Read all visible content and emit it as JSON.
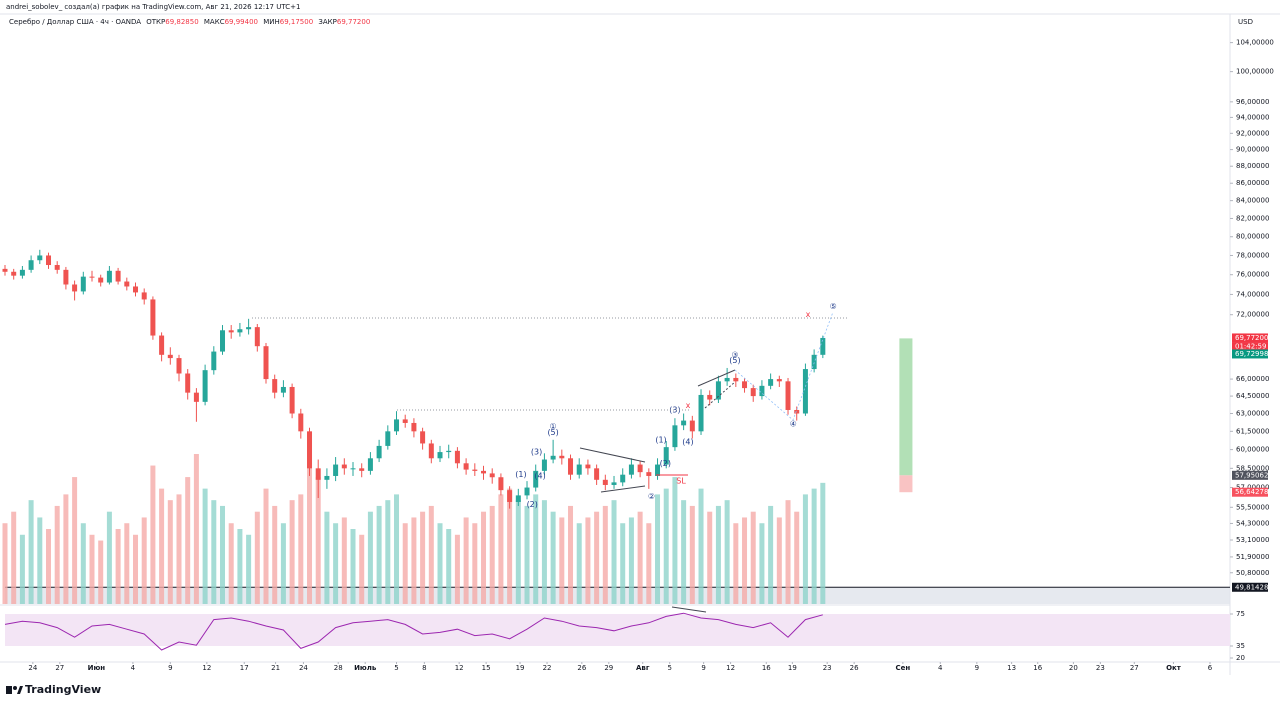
{
  "header": {
    "attribution": "andrei_sobolev_ создал(а) график на TradingView.com, Авг 21, 2026 12:17 UTC+1",
    "legend": {
      "symbol": "Серебро / Доллар США · 4ч · OANDA",
      "open_label": "ОТКР",
      "open": {
        "value": 69.8285,
        "label": "69,82850"
      },
      "high_label": "МАКС",
      "high": {
        "value": 69.994,
        "label": "69,99400"
      },
      "low_label": "МИН",
      "low": {
        "value": 69.175,
        "label": "69,17500"
      },
      "close_label": "ЗАКР",
      "close": {
        "value": 69.772,
        "label": "69,77200"
      }
    }
  },
  "logo": "TradingView",
  "chart_data": {
    "type": "candlestick",
    "currency": "USD",
    "log_scale": true,
    "up_color": "#26a69a",
    "down_color": "#ef5350",
    "xlim": [
      0,
      140.8
    ],
    "ylim": [
      48.7,
      108.1
    ],
    "yticks": [
      {
        "value": 104,
        "label": "104,00000"
      },
      {
        "value": 100,
        "label": "100,00000"
      },
      {
        "value": 96,
        "label": "96,00000"
      },
      {
        "value": 94,
        "label": "94,00000"
      },
      {
        "value": 92,
        "label": "92,00000"
      },
      {
        "value": 90,
        "label": "90,00000"
      },
      {
        "value": 88,
        "label": "88,00000"
      },
      {
        "value": 86,
        "label": "86,00000"
      },
      {
        "value": 84,
        "label": "84,00000"
      },
      {
        "value": 82,
        "label": "82,00000"
      },
      {
        "value": 80,
        "label": "80,00000"
      },
      {
        "value": 78,
        "label": "78,00000"
      },
      {
        "value": 76,
        "label": "76,00000"
      },
      {
        "value": 74,
        "label": "74,00000"
      },
      {
        "value": 72,
        "label": "72,00000"
      },
      {
        "value": 66,
        "label": "66,00000"
      },
      {
        "value": 64.5,
        "label": "64,50000"
      },
      {
        "value": 63,
        "label": "63,00000"
      },
      {
        "value": 61.5,
        "label": "61,50000"
      },
      {
        "value": 60,
        "label": "60,00000"
      },
      {
        "value": 58.5,
        "label": "58,50000"
      },
      {
        "value": 57,
        "label": "57,00000"
      },
      {
        "value": 55.5,
        "label": "55,50000"
      },
      {
        "value": 54.3,
        "label": "54,30000"
      },
      {
        "value": 53.1,
        "label": "53,10000"
      },
      {
        "value": 51.9,
        "label": "51,90000"
      },
      {
        "value": 50.8,
        "label": "50,80000"
      }
    ],
    "xticks": [
      {
        "value": 3.2,
        "label": "24"
      },
      {
        "value": 6.3,
        "label": "27"
      },
      {
        "value": 10.5,
        "label": "Июн"
      },
      {
        "value": 14.7,
        "label": "4"
      },
      {
        "value": 19,
        "label": "9"
      },
      {
        "value": 23.2,
        "label": "12"
      },
      {
        "value": 27.5,
        "label": "17"
      },
      {
        "value": 31.1,
        "label": "21"
      },
      {
        "value": 34.3,
        "label": "24"
      },
      {
        "value": 38.3,
        "label": "28"
      },
      {
        "value": 41.4,
        "label": "Июль"
      },
      {
        "value": 45,
        "label": "5"
      },
      {
        "value": 48.2,
        "label": "8"
      },
      {
        "value": 52.2,
        "label": "12"
      },
      {
        "value": 55.3,
        "label": "15"
      },
      {
        "value": 59.2,
        "label": "19"
      },
      {
        "value": 62.3,
        "label": "22"
      },
      {
        "value": 66.3,
        "label": "26"
      },
      {
        "value": 69.4,
        "label": "29"
      },
      {
        "value": 73.3,
        "label": "Авг"
      },
      {
        "value": 76.4,
        "label": "5"
      },
      {
        "value": 80.3,
        "label": "9"
      },
      {
        "value": 83.4,
        "label": "12"
      },
      {
        "value": 87.5,
        "label": "16"
      },
      {
        "value": 90.5,
        "label": "19"
      },
      {
        "value": 94.5,
        "label": "23"
      },
      {
        "value": 97.6,
        "label": "26"
      },
      {
        "value": 103.2,
        "label": "Сен"
      },
      {
        "value": 107.5,
        "label": "4"
      },
      {
        "value": 111.7,
        "label": "9"
      },
      {
        "value": 115.7,
        "label": "13"
      },
      {
        "value": 118.7,
        "label": "16"
      },
      {
        "value": 122.8,
        "label": "20"
      },
      {
        "value": 125.9,
        "label": "23"
      },
      {
        "value": 129.8,
        "label": "27"
      },
      {
        "value": 134.3,
        "label": "Окт"
      },
      {
        "value": 138.5,
        "label": "6"
      }
    ],
    "ohlc": [
      [
        76.6,
        77.0,
        75.9,
        76.3
      ],
      [
        76.3,
        76.6,
        75.5,
        75.9
      ],
      [
        75.9,
        76.9,
        75.6,
        76.5
      ],
      [
        76.5,
        78.0,
        76.2,
        77.5
      ],
      [
        77.5,
        78.6,
        77.1,
        78.0
      ],
      [
        78.0,
        78.3,
        76.6,
        77.0
      ],
      [
        77.0,
        77.4,
        76.1,
        76.5
      ],
      [
        76.5,
        76.8,
        74.5,
        75.0
      ],
      [
        75.0,
        75.4,
        73.4,
        74.3
      ],
      [
        74.3,
        76.3,
        74.0,
        75.8
      ],
      [
        75.8,
        76.4,
        75.3,
        75.7
      ],
      [
        75.7,
        76.0,
        74.8,
        75.2
      ],
      [
        75.2,
        76.9,
        75.0,
        76.4
      ],
      [
        76.4,
        76.7,
        75.0,
        75.3
      ],
      [
        75.3,
        75.7,
        74.4,
        74.8
      ],
      [
        74.8,
        75.2,
        73.8,
        74.2
      ],
      [
        74.2,
        74.6,
        73.0,
        73.5
      ],
      [
        73.5,
        73.8,
        69.6,
        70.0
      ],
      [
        70.0,
        70.3,
        67.6,
        68.2
      ],
      [
        68.2,
        68.9,
        67.3,
        67.9
      ],
      [
        67.9,
        68.2,
        65.8,
        66.5
      ],
      [
        66.5,
        66.9,
        64.2,
        64.8
      ],
      [
        64.8,
        65.2,
        62.3,
        64.0
      ],
      [
        64.0,
        67.3,
        63.7,
        66.8
      ],
      [
        66.8,
        69.0,
        66.4,
        68.5
      ],
      [
        68.5,
        71.0,
        68.2,
        70.5
      ],
      [
        70.5,
        71.0,
        69.7,
        70.3
      ],
      [
        70.3,
        71.2,
        69.9,
        70.6
      ],
      [
        70.6,
        71.6,
        70.1,
        70.8
      ],
      [
        70.8,
        71.1,
        68.5,
        69.0
      ],
      [
        69.0,
        69.3,
        65.6,
        66.0
      ],
      [
        66.0,
        66.4,
        64.3,
        64.8
      ],
      [
        64.8,
        65.9,
        64.4,
        65.3
      ],
      [
        65.3,
        65.6,
        62.6,
        63.0
      ],
      [
        63.0,
        63.4,
        60.9,
        61.5
      ],
      [
        61.5,
        61.8,
        57.9,
        58.5
      ],
      [
        58.5,
        59.2,
        56.2,
        57.6
      ],
      [
        57.6,
        58.5,
        56.9,
        57.9
      ],
      [
        57.9,
        59.4,
        57.5,
        58.8
      ],
      [
        58.8,
        59.3,
        58.0,
        58.5
      ],
      [
        58.5,
        59.0,
        57.9,
        58.5
      ],
      [
        58.5,
        58.9,
        57.8,
        58.3
      ],
      [
        58.3,
        59.8,
        58.0,
        59.3
      ],
      [
        59.3,
        60.8,
        59.0,
        60.3
      ],
      [
        60.3,
        62.0,
        60.0,
        61.5
      ],
      [
        61.5,
        63.2,
        61.2,
        62.5
      ],
      [
        62.5,
        62.9,
        61.8,
        62.2
      ],
      [
        62.2,
        62.6,
        61.0,
        61.5
      ],
      [
        61.5,
        61.8,
        60.0,
        60.5
      ],
      [
        60.5,
        60.8,
        58.9,
        59.3
      ],
      [
        59.3,
        60.3,
        59.0,
        59.8
      ],
      [
        59.8,
        60.4,
        59.3,
        59.9
      ],
      [
        59.9,
        60.2,
        58.5,
        58.9
      ],
      [
        58.9,
        59.3,
        58.0,
        58.4
      ],
      [
        58.4,
        58.9,
        57.9,
        58.3
      ],
      [
        58.3,
        58.7,
        57.6,
        58.1
      ],
      [
        58.1,
        58.5,
        57.3,
        57.8
      ],
      [
        57.8,
        58.1,
        56.4,
        56.8
      ],
      [
        56.8,
        57.1,
        55.4,
        55.9
      ],
      [
        55.9,
        56.9,
        55.6,
        56.4
      ],
      [
        56.4,
        57.5,
        56.1,
        57.0
      ],
      [
        57.0,
        58.8,
        56.7,
        58.3
      ],
      [
        58.3,
        59.7,
        58.0,
        59.2
      ],
      [
        59.2,
        60.8,
        58.9,
        59.5
      ],
      [
        59.5,
        60.0,
        58.8,
        59.3
      ],
      [
        59.3,
        59.6,
        57.6,
        58.0
      ],
      [
        58.0,
        59.3,
        57.7,
        58.8
      ],
      [
        58.8,
        59.2,
        58.0,
        58.5
      ],
      [
        58.5,
        58.8,
        57.2,
        57.6
      ],
      [
        57.6,
        58.0,
        56.8,
        57.2
      ],
      [
        57.2,
        57.9,
        56.9,
        57.4
      ],
      [
        57.4,
        58.5,
        57.1,
        58.0
      ],
      [
        58.0,
        59.3,
        57.7,
        58.8
      ],
      [
        58.8,
        59.1,
        57.8,
        58.2
      ],
      [
        58.2,
        58.5,
        56.9,
        57.9
      ],
      [
        57.9,
        59.3,
        57.6,
        58.8
      ],
      [
        58.8,
        60.7,
        58.5,
        60.2
      ],
      [
        60.2,
        62.6,
        59.9,
        62.0
      ],
      [
        62.0,
        63.0,
        61.6,
        62.4
      ],
      [
        62.4,
        62.8,
        60.9,
        61.5
      ],
      [
        61.5,
        65.1,
        61.2,
        64.6
      ],
      [
        64.6,
        65.0,
        63.7,
        64.2
      ],
      [
        64.2,
        66.3,
        63.9,
        65.8
      ],
      [
        65.8,
        67.0,
        65.4,
        66.1
      ],
      [
        66.1,
        66.5,
        65.3,
        65.8
      ],
      [
        65.8,
        66.1,
        64.8,
        65.2
      ],
      [
        65.2,
        65.5,
        64.0,
        64.5
      ],
      [
        64.5,
        65.9,
        64.2,
        65.4
      ],
      [
        65.4,
        66.5,
        65.1,
        66.0
      ],
      [
        66.0,
        66.3,
        65.3,
        65.8
      ],
      [
        65.8,
        66.1,
        62.9,
        63.3
      ],
      [
        63.3,
        63.6,
        62.4,
        63.0
      ],
      [
        63.0,
        67.4,
        62.8,
        66.9
      ],
      [
        66.9,
        68.7,
        66.6,
        68.2
      ],
      [
        68.2,
        69.994,
        67.9,
        69.772
      ]
    ],
    "volume": {
      "up_color": "#8fd3cb",
      "down_color": "#f5aaa8",
      "values": [
        70,
        80,
        60,
        90,
        75,
        65,
        85,
        95,
        110,
        70,
        60,
        55,
        80,
        65,
        70,
        60,
        75,
        120,
        100,
        90,
        95,
        110,
        130,
        100,
        90,
        85,
        70,
        65,
        60,
        80,
        100,
        85,
        70,
        90,
        95,
        120,
        110,
        80,
        70,
        75,
        65,
        60,
        80,
        85,
        90,
        95,
        70,
        75,
        80,
        85,
        70,
        65,
        60,
        75,
        70,
        80,
        85,
        95,
        100,
        90,
        85,
        95,
        90,
        80,
        75,
        85,
        70,
        75,
        80,
        85,
        90,
        70,
        75,
        80,
        70,
        95,
        100,
        110,
        90,
        85,
        100,
        80,
        85,
        90,
        70,
        75,
        80,
        70,
        85,
        75,
        90,
        80,
        95,
        100,
        105
      ]
    },
    "price_labels": [
      {
        "value": 69.772,
        "label": "69,77200",
        "color": "#f23645"
      },
      {
        "value": 69.72998,
        "label": "69,72998",
        "color": "#089981"
      },
      {
        "value": 57.95062,
        "label": "57,95062",
        "color": "#50535e"
      },
      {
        "value": 56.64278,
        "label": "56,64278",
        "color": "#f7525f"
      },
      {
        "value": 49.81428,
        "label": "49,81428",
        "color": "#131722"
      }
    ],
    "countdown": "01:42:59",
    "position": {
      "x": [
        102.8,
        104.3
      ],
      "target": 69.72998,
      "entry": 57.95062,
      "stop": 56.64278
    },
    "annotations": [
      {
        "text": "①",
        "x": 63.0,
        "y": 61.9,
        "color": "#1e3a8a"
      },
      {
        "text": "(5)",
        "x": 63.0,
        "y": 61.4,
        "color": "#1e3a8a"
      },
      {
        "text": "(3)",
        "x": 61.1,
        "y": 59.8,
        "color": "#1e3a8a"
      },
      {
        "text": "(1)",
        "x": 59.3,
        "y": 58.0,
        "color": "#1e3a8a"
      },
      {
        "text": "(4)",
        "x": 61.5,
        "y": 57.9,
        "color": "#1e3a8a"
      },
      {
        "text": "(2)",
        "x": 60.6,
        "y": 55.7,
        "color": "#1e3a8a"
      },
      {
        "text": "②",
        "x": 74.3,
        "y": 56.3,
        "color": "#1e3a8a"
      },
      {
        "text": "(1)",
        "x": 75.4,
        "y": 60.8,
        "color": "#1e3a8a"
      },
      {
        "text": "(2)",
        "x": 75.9,
        "y": 58.9,
        "color": "#1e3a8a"
      },
      {
        "text": "(3)",
        "x": 77.0,
        "y": 63.3,
        "color": "#1e3a8a"
      },
      {
        "text": "(4)",
        "x": 78.5,
        "y": 60.6,
        "color": "#1e3a8a"
      },
      {
        "text": "x",
        "x": 78.5,
        "y": 63.7,
        "color": "#f23645"
      },
      {
        "text": "③",
        "x": 83.9,
        "y": 68.2,
        "color": "#1e3a8a"
      },
      {
        "text": "(5)",
        "x": 83.9,
        "y": 67.7,
        "color": "#1e3a8a"
      },
      {
        "text": "④",
        "x": 90.6,
        "y": 62.1,
        "color": "#1e3a8a"
      },
      {
        "text": "⑤",
        "x": 95.2,
        "y": 72.8,
        "color": "#1e3a8a"
      },
      {
        "text": "x",
        "x": 92.3,
        "y": 72.0,
        "color": "#f23645"
      },
      {
        "text": "SL",
        "x": 77.7,
        "y": 57.5,
        "color": "#f23645"
      }
    ],
    "rsi": {
      "color": "#9c27b0",
      "ylim": [
        15,
        85
      ],
      "yticks": [
        20,
        35,
        75
      ],
      "band": [
        35,
        75
      ],
      "x": [
        0,
        2,
        4,
        6,
        8,
        10,
        12,
        14,
        16,
        18,
        20,
        22,
        24,
        26,
        28,
        30,
        32,
        34,
        36,
        38,
        40,
        42,
        44,
        46,
        48,
        50,
        52,
        54,
        56,
        58,
        60,
        62,
        64,
        66,
        68,
        70,
        72,
        74,
        76,
        78,
        80,
        82,
        84,
        86,
        88,
        90,
        92,
        94
      ],
      "values": [
        62,
        66,
        64,
        58,
        46,
        60,
        62,
        56,
        50,
        30,
        40,
        36,
        68,
        70,
        66,
        60,
        55,
        32,
        40,
        58,
        64,
        66,
        68,
        62,
        50,
        52,
        56,
        48,
        50,
        44,
        56,
        70,
        66,
        60,
        58,
        54,
        60,
        64,
        72,
        76,
        70,
        68,
        62,
        58,
        64,
        46,
        68,
        74
      ]
    }
  }
}
